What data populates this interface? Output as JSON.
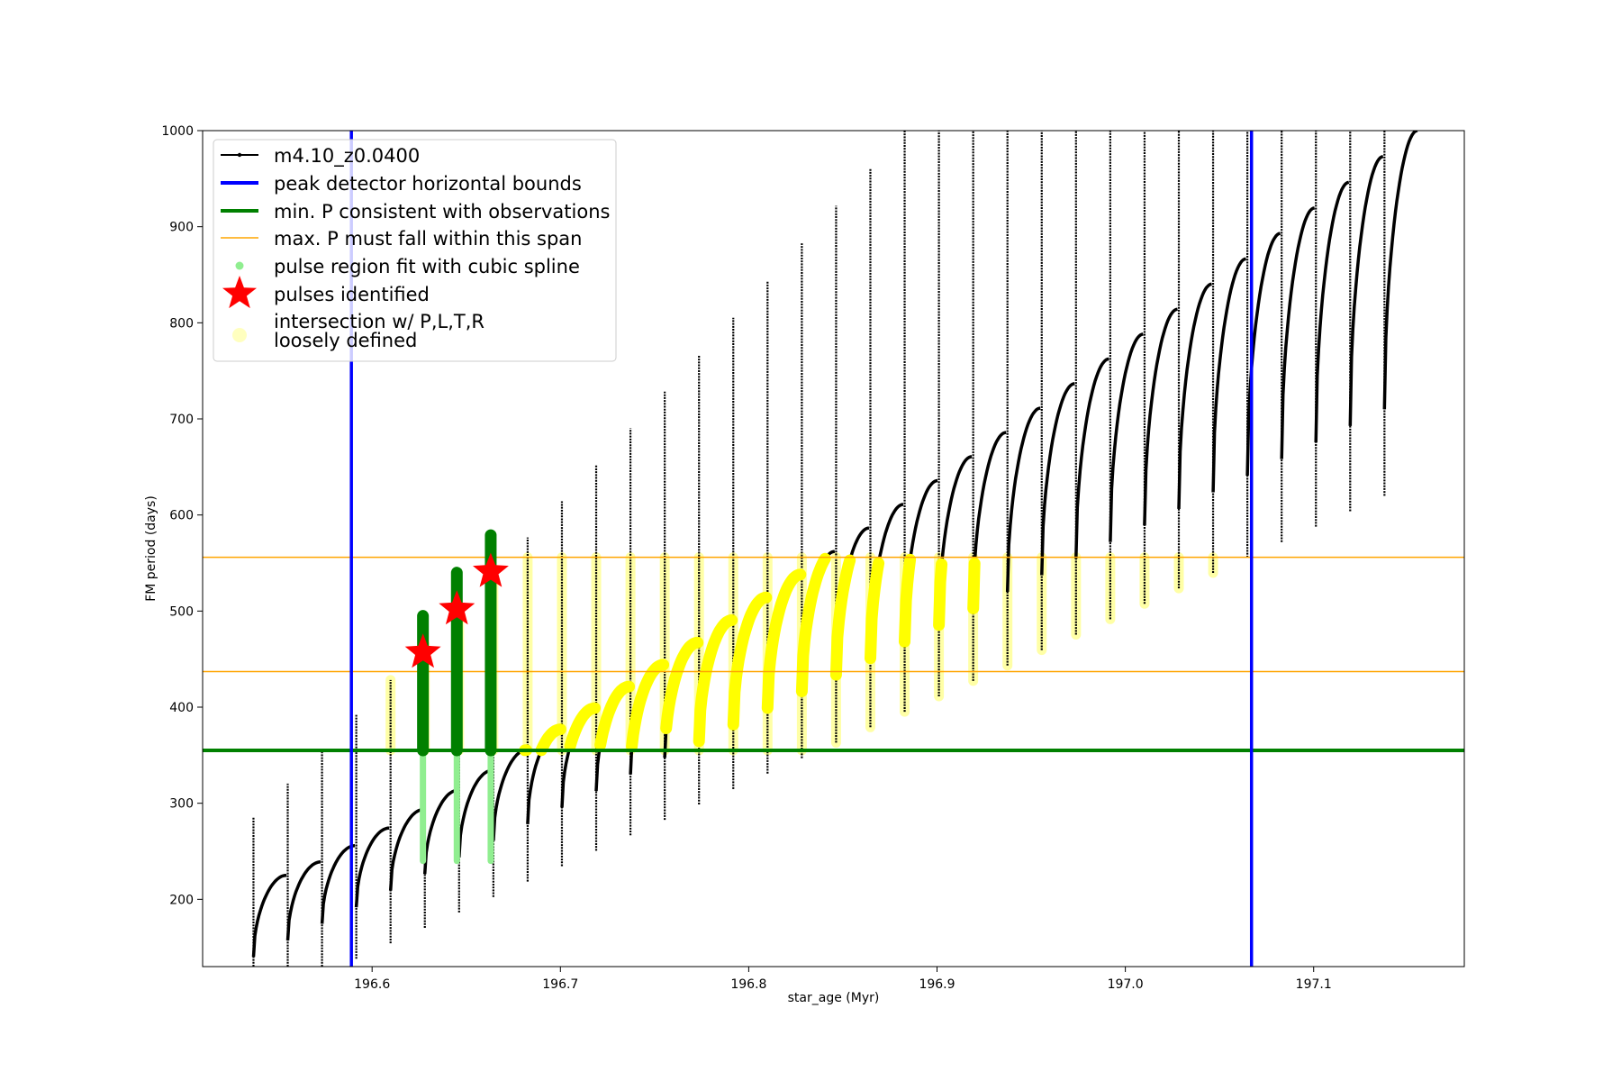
{
  "chart_data": {
    "type": "line",
    "title": "",
    "xlabel": "star_age (Myr)",
    "ylabel": "FM period (days)",
    "xlim": [
      196.51,
      197.18
    ],
    "ylim": [
      130,
      1000
    ],
    "xticks": [
      196.6,
      196.7,
      196.8,
      196.9,
      197.0,
      197.1
    ],
    "xtick_labels": [
      "196.6",
      "196.7",
      "196.8",
      "196.9",
      "197.0",
      "197.1"
    ],
    "yticks": [
      200,
      300,
      400,
      500,
      600,
      700,
      800,
      900,
      1000
    ],
    "ytick_labels": [
      "200",
      "300",
      "400",
      "500",
      "600",
      "700",
      "800",
      "900",
      "1000"
    ],
    "grid": false,
    "legend_position": "top-left",
    "legend": [
      "m4.10_z0.0400",
      "peak detector horizontal bounds",
      "min. P consistent with observations",
      "max. P must fall within this span",
      "pulse region fit with cubic spline",
      "pulses identified",
      "intersection w/ P,L,T,R\nloosely defined"
    ],
    "vertical_lines": [
      196.589,
      197.067
    ],
    "min_P_line": 355,
    "max_P_span": [
      437,
      556
    ],
    "pulses_identified": [
      {
        "x": 196.627,
        "y": 457
      },
      {
        "x": 196.645,
        "y": 502
      },
      {
        "x": 196.663,
        "y": 541
      }
    ],
    "model_track": {
      "x_start": 196.537,
      "x_end": 197.14,
      "n_pulses": 34,
      "pulse_spacing_myr": 0.0182,
      "min_period_start": 140,
      "min_period_end": 710,
      "max_period_start": 225,
      "max_period_end": 1000
    },
    "colors": {
      "track": "#000000",
      "bounds": "#0000ff",
      "min_P": "#008000",
      "max_P": "#ffa500",
      "spline": "#90ee90",
      "stars": "#ff0000",
      "intersection": "#ffff00"
    }
  }
}
